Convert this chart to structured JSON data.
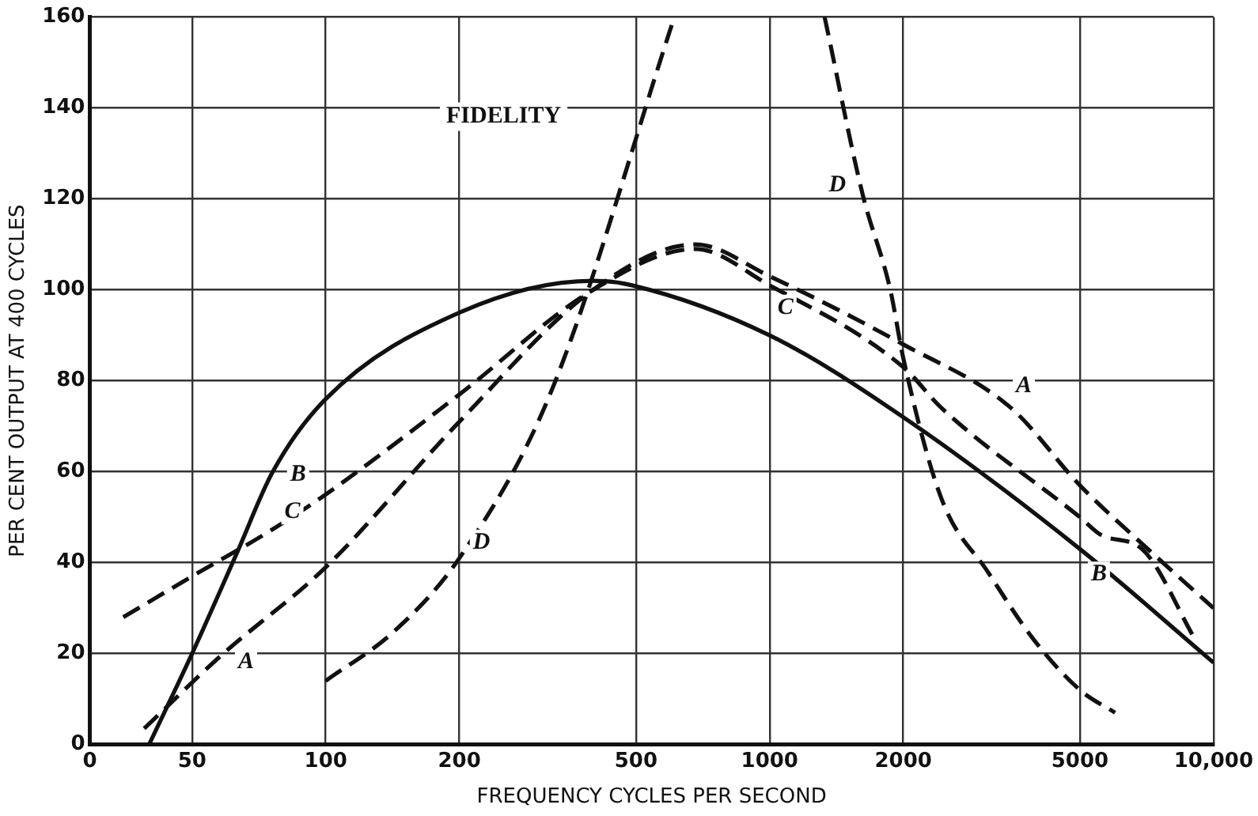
{
  "chart_data": {
    "type": "line",
    "title": "FIDELITY",
    "xlabel": "FREQUENCY CYCLES PER SECOND",
    "ylabel": "PER CENT OUTPUT AT 400 CYCLES",
    "log": "x",
    "xlim": [
      0,
      10000
    ],
    "xticks": [
      0,
      50,
      100,
      200,
      500,
      1000,
      2000,
      5000,
      {
        "value": 10000,
        "label": "10,000"
      }
    ],
    "ylim": [
      0,
      160
    ],
    "yticks": [
      0,
      20,
      40,
      60,
      80,
      100,
      120,
      140,
      160
    ],
    "grid": true,
    "marker": "none",
    "series": [
      {
        "name": "A",
        "color": "#111111",
        "line_style": "dashed",
        "x": [
          39,
          58,
          100,
          200,
          400,
          680,
          1000,
          2000,
          3500,
          5000,
          7300,
          10000
        ],
        "values": [
          3.5,
          19.5,
          39,
          71,
          100,
          110,
          103,
          88,
          74,
          57,
          42,
          30
        ]
      },
      {
        "name": "B",
        "color": "#111111",
        "line_style": "solid",
        "x": [
          40,
          50,
          63,
          76,
          100,
          200,
          400,
          490,
          1000,
          2000,
          5000,
          10000
        ],
        "values": [
          0,
          20,
          42,
          60,
          76,
          95,
          102,
          101,
          90,
          72,
          43,
          18
        ]
      },
      {
        "name": "C",
        "color": "#111111",
        "line_style": "dashed",
        "x": [
          35,
          50,
          75,
          100,
          200,
          400,
          680,
          1000,
          2000,
          2440,
          5000,
          5600,
          6900,
          9100
        ],
        "values": [
          28,
          37,
          47,
          55,
          77,
          100,
          109,
          101,
          83,
          74,
          50,
          46,
          43,
          23
        ]
      },
      {
        "name": "D",
        "color": "#111111",
        "line_style": "dashed",
        "x": [
          100,
          143,
          200,
          320,
          610,
          900,
          1330,
          1620,
          1870,
          2000,
          2440,
          3100,
          3940,
          5000,
          6000
        ],
        "values": [
          14,
          25,
          41,
          77,
          160,
          null,
          160,
          121,
          100,
          85,
          54,
          38,
          23,
          12,
          7
        ]
      }
    ]
  }
}
